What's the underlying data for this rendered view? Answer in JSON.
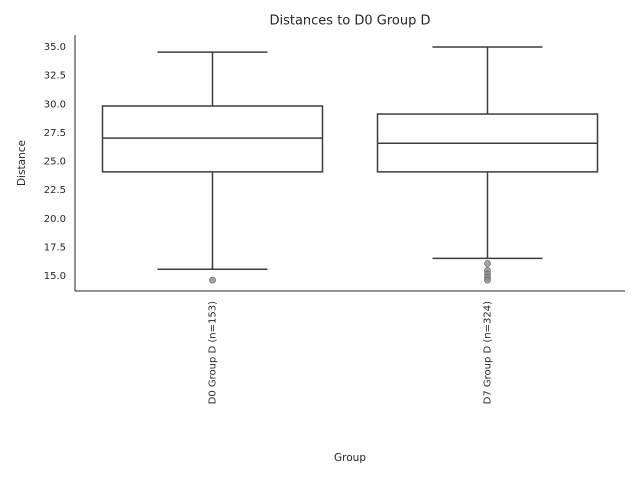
{
  "chart_data": {
    "type": "box",
    "title": "Distances to D0 Group D",
    "x_label": "Group",
    "y_label": "Distance",
    "categories": [
      "D0 Group D (n=153)",
      "D7 Group D (n=324)"
    ],
    "boxes": [
      {
        "whisker_low": 15.6,
        "q1": 24.1,
        "median": 27.05,
        "q3": 29.85,
        "whisker_high": 34.55,
        "outliers": [
          14.65
        ]
      },
      {
        "whisker_low": 16.55,
        "q1": 24.1,
        "median": 26.6,
        "q3": 29.15,
        "whisker_high": 35.0,
        "outliers": [
          16.1,
          15.5,
          15.2,
          14.9,
          14.65
        ]
      }
    ],
    "box_color": "#ffffff",
    "line_color": "#3d3d3d",
    "outlier_color": "#8c8c8c",
    "ylim": [
      13.7,
      36.05
    ],
    "yticks": [
      {
        "value": 15,
        "label": "15.0"
      },
      17.5,
      {
        "value": 20,
        "label": "20.0"
      },
      22.5,
      {
        "value": 25,
        "label": "25.0"
      },
      27.5,
      {
        "value": 30,
        "label": "30.0"
      },
      32.5,
      {
        "value": 35,
        "label": "35.0"
      }
    ]
  }
}
